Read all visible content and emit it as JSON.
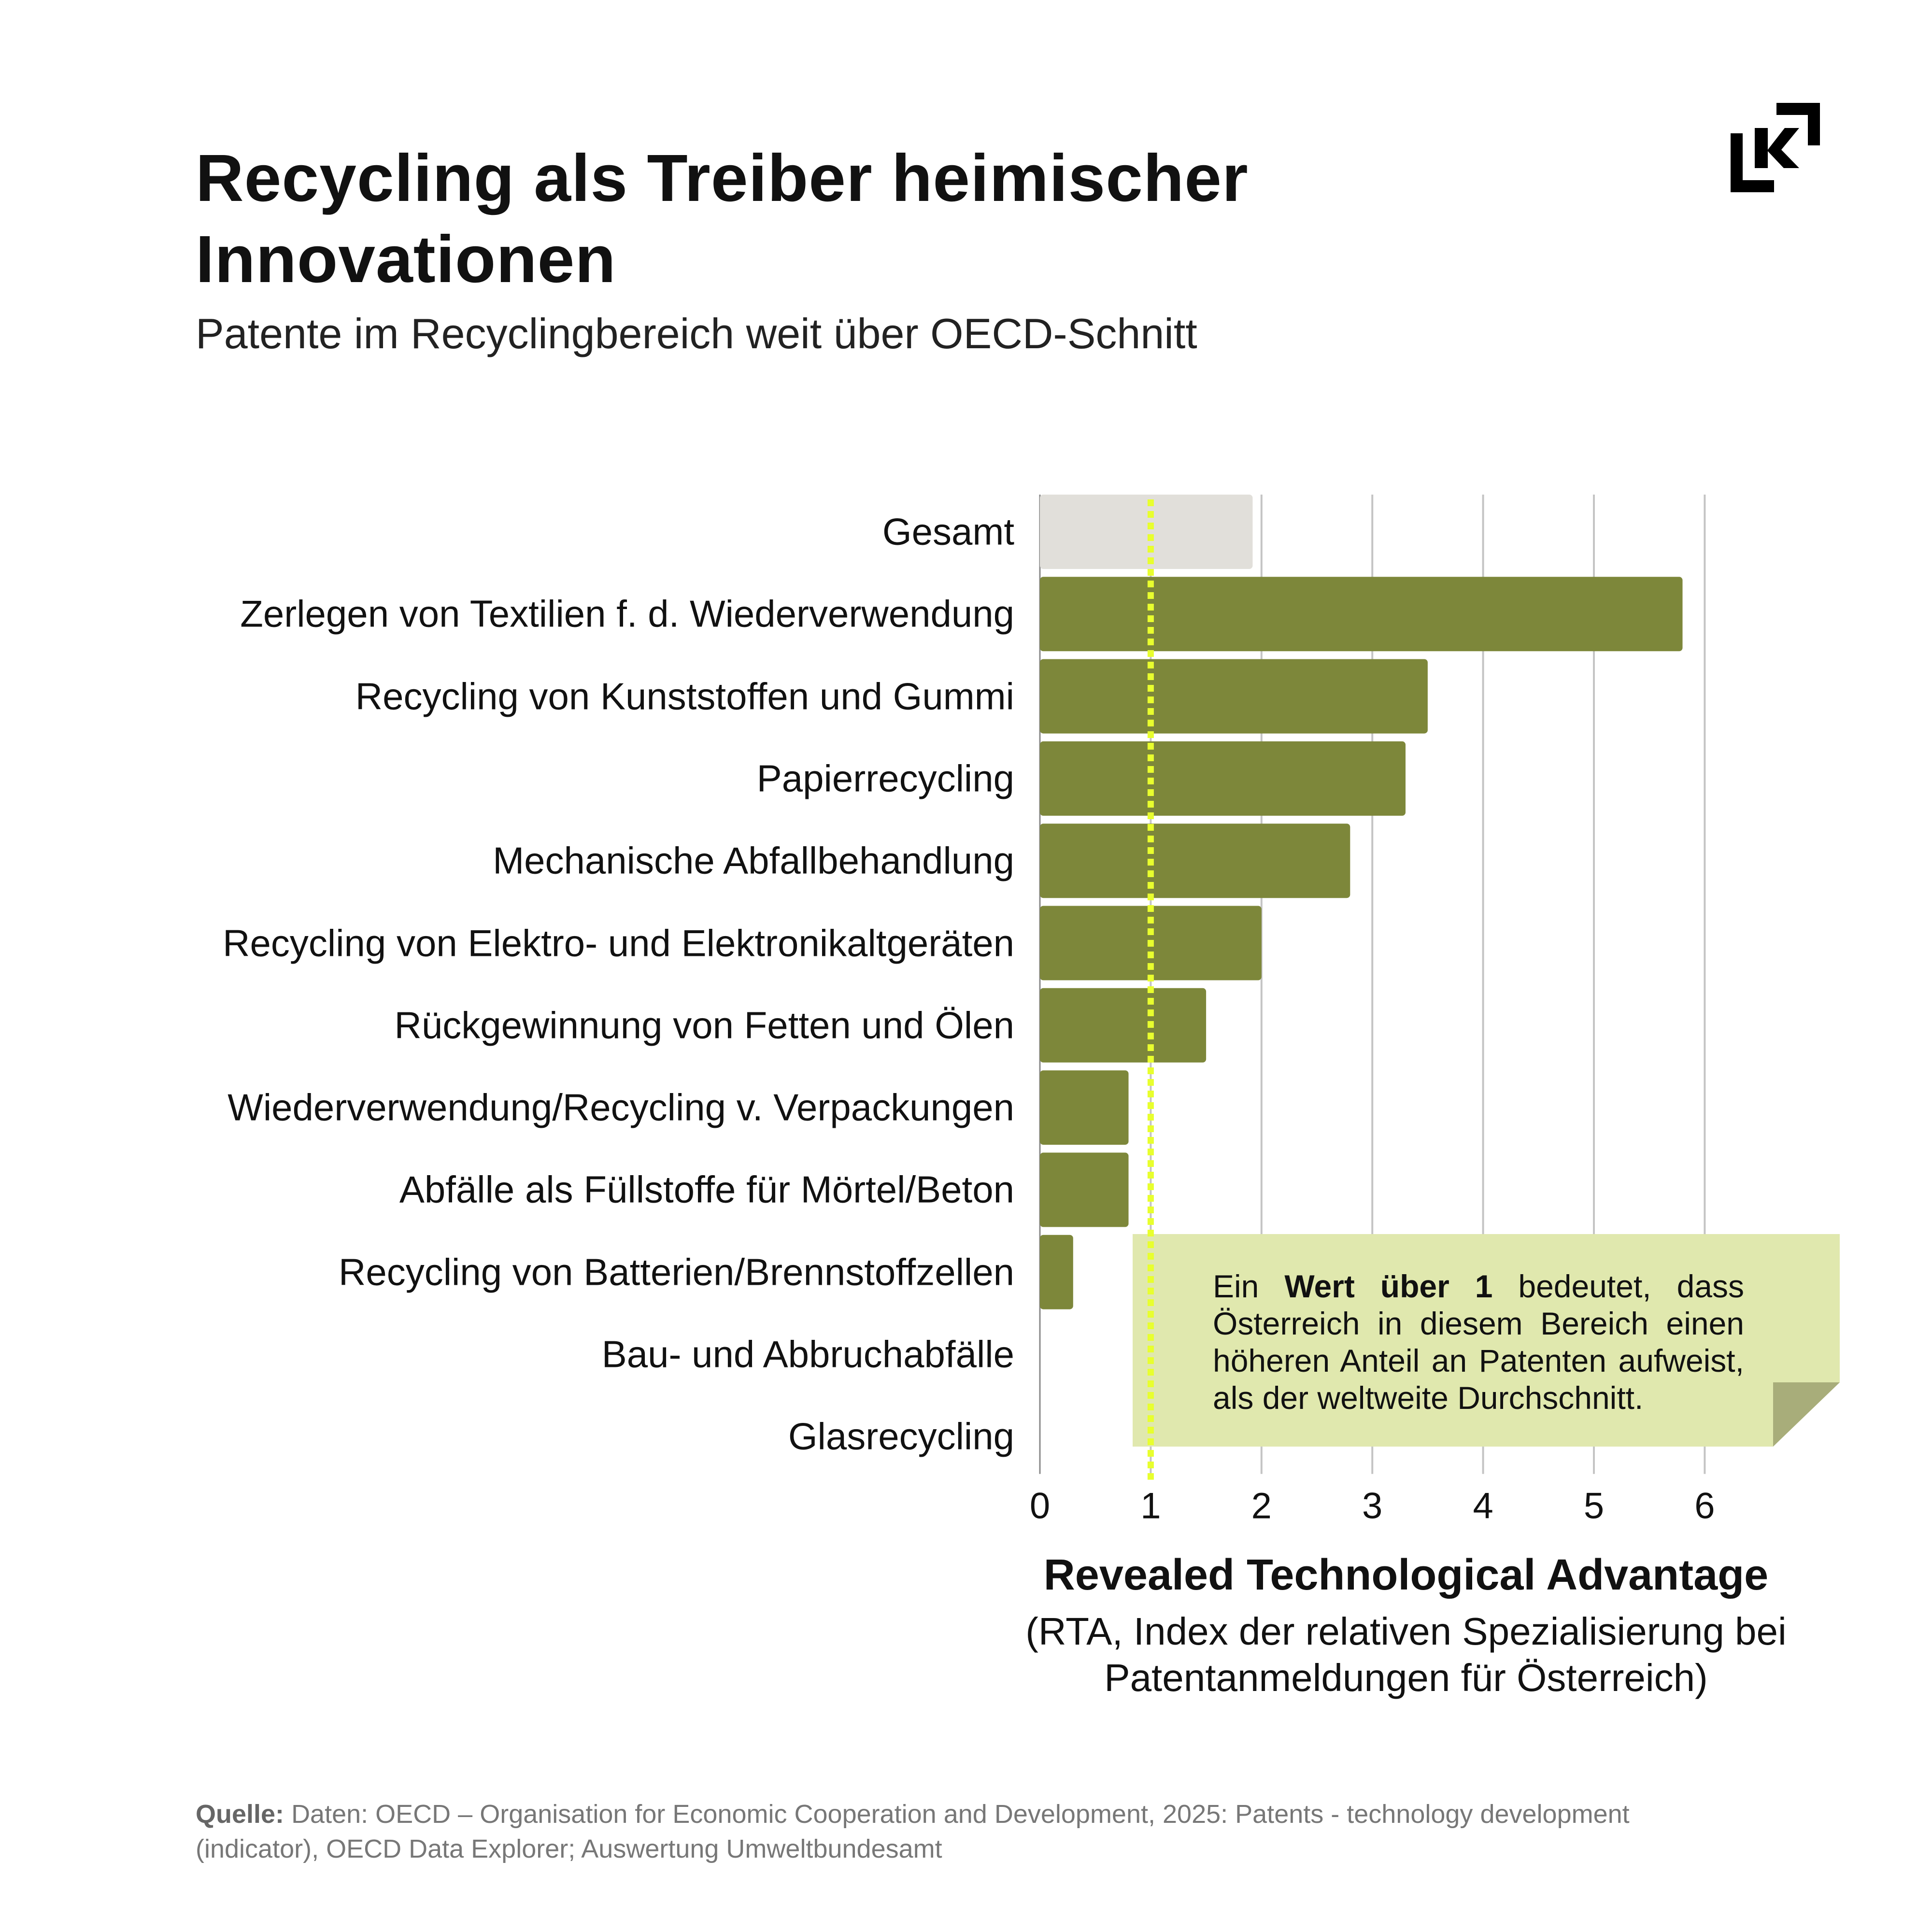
{
  "title": "Recycling als Treiber heimischer Innovationen",
  "subtitle": "Patente im Recyclingbereich weit über OECD-Schnitt",
  "logo_text": "K",
  "chart_data": {
    "type": "bar",
    "orientation": "horizontal",
    "categories": [
      "Gesamt",
      "Zerlegen von Textilien f. d. Wiederverwendung",
      "Recycling von Kunststoffen und Gummi",
      "Papierrecycling",
      "Mechanische Abfallbehandlung",
      "Recycling von Elektro- und Elektronikaltgeräten",
      "Rückgewinnung von Fetten und Ölen",
      "Wiederverwendung/Recycling v. Verpackungen",
      "Abfälle als Füllstoffe für Mörtel/Beton",
      "Recycling von Batterien/Brennstoffzellen",
      "Bau- und Abbruchabfälle",
      "Glasrecycling"
    ],
    "values": [
      1.92,
      5.8,
      3.5,
      3.3,
      2.8,
      2.0,
      1.5,
      0.8,
      0.8,
      0.3,
      0,
      0
    ],
    "xlim": [
      0,
      6.3
    ],
    "xticks": [
      "0",
      "1",
      "2",
      "3",
      "4",
      "5",
      "6"
    ],
    "reference_line": 1,
    "grid": true,
    "xlabel": "Revealed Technological Advantage",
    "xlabel_sub": "(RTA, Index der relativen Spezialisierung bei Patentanmeldungen für Österreich)",
    "colors": {
      "total": "#e1dfda",
      "bars": "#7d873a",
      "reference_line": "#e8ff2e",
      "grid": "#c4c4c4",
      "note_bg": "#e0e8ae",
      "note_fold": "#a8ad7a"
    },
    "annotation": {
      "pre": "Ein",
      "bold": "Wert über 1",
      "post": "bedeutet, dass Österreich in diesem Bereich einen höheren Anteil an Patenten aufweist, als der weltweite Durchschnitt."
    }
  },
  "source": {
    "label": "Quelle:",
    "text": "Daten: OECD – Organisation for Economic Cooperation and Development, 2025: Patents - technology development (indicator), OECD Data Explorer; Auswertung Umweltbundesamt"
  }
}
